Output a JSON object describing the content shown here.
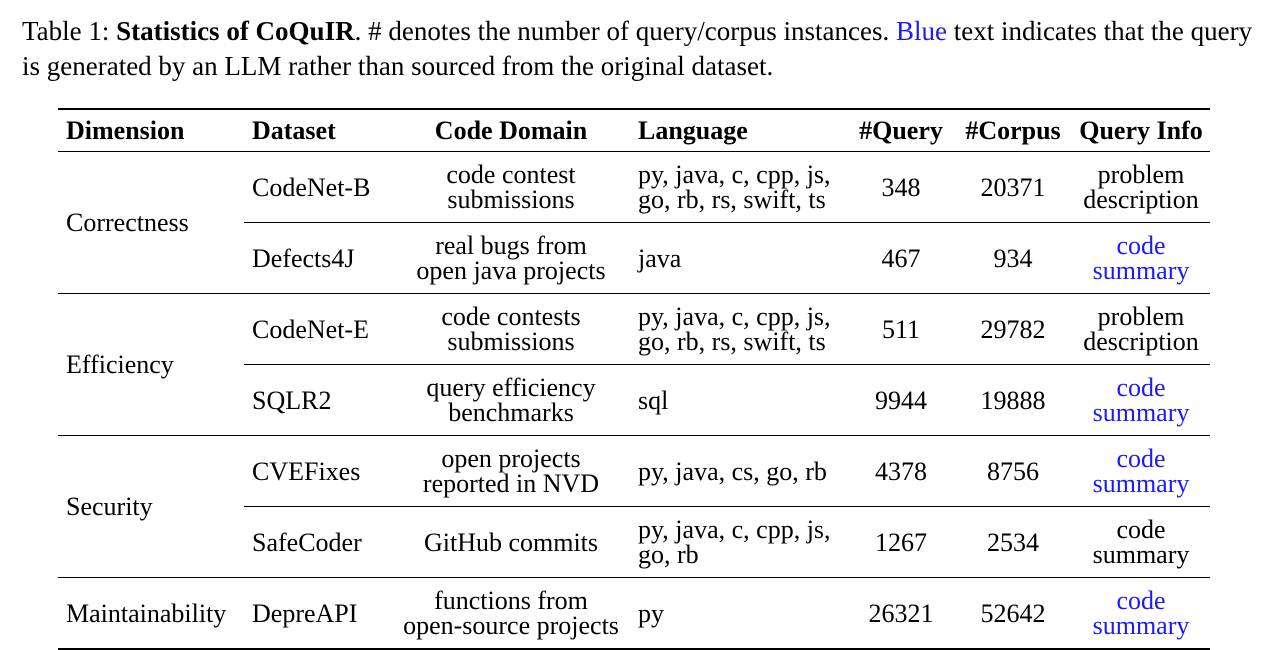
{
  "caption": {
    "prefix": "Table 1: ",
    "title": "Statistics of CoQuIR",
    "text_a": ". # denotes the number of query/corpus instances. ",
    "blue_word": "Blue",
    "text_b": " text indicates that the query is generated by an LLM rather than sourced from the original dataset."
  },
  "table": {
    "headers": [
      "Dimension",
      "Dataset",
      "Code Domain",
      "Language",
      "#Query",
      "#Corpus",
      "Query Info"
    ],
    "dimensions": {
      "correctness": "Correctness",
      "efficiency": "Efficiency",
      "security": "Security",
      "maintainability": "Maintainability"
    },
    "rows": [
      {
        "dataset": "CodeNet-B",
        "domain_1": "code contest",
        "domain_2": "submissions",
        "lang_1": "py, java, c, cpp, js,",
        "lang_2": "go, rb, rs, swift, ts",
        "query": "348",
        "corpus": "20371",
        "info_1": "problem",
        "info_2": "description",
        "llm": false
      },
      {
        "dataset": "Defects4J",
        "domain_1": "real bugs from",
        "domain_2": "open java projects",
        "lang_1": "java",
        "lang_2": "",
        "query": "467",
        "corpus": "934",
        "info_1": "code",
        "info_2": "summary",
        "llm": true
      },
      {
        "dataset": "CodeNet-E",
        "domain_1": "code contests",
        "domain_2": "submissions",
        "lang_1": "py, java, c, cpp, js,",
        "lang_2": "go, rb, rs, swift, ts",
        "query": "511",
        "corpus": "29782",
        "info_1": "problem",
        "info_2": "description",
        "llm": false
      },
      {
        "dataset": "SQLR2",
        "domain_1": "query efficiency",
        "domain_2": "benchmarks",
        "lang_1": "sql",
        "lang_2": "",
        "query": "9944",
        "corpus": "19888",
        "info_1": "code",
        "info_2": "summary",
        "llm": true
      },
      {
        "dataset": "CVEFixes",
        "domain_1": "open projects",
        "domain_2": "reported in NVD",
        "lang_1": "py, java, cs, go, rb",
        "lang_2": "",
        "query": "4378",
        "corpus": "8756",
        "info_1": "code",
        "info_2": "summary",
        "llm": true
      },
      {
        "dataset": "SafeCoder",
        "domain_1": "GitHub commits",
        "domain_2": "",
        "lang_1": "py, java, c, cpp, js,",
        "lang_2": "go, rb",
        "query": "1267",
        "corpus": "2534",
        "info_1": "code",
        "info_2": "summary",
        "llm": false
      },
      {
        "dataset": "DepreAPI",
        "domain_1": "functions from",
        "domain_2": "open-source projects",
        "lang_1": "py",
        "lang_2": "",
        "query": "26321",
        "corpus": "52642",
        "info_1": "code",
        "info_2": "summary",
        "llm": true
      }
    ]
  },
  "colors": {
    "llm_generated": "#1a1aff",
    "text": "#000000"
  }
}
